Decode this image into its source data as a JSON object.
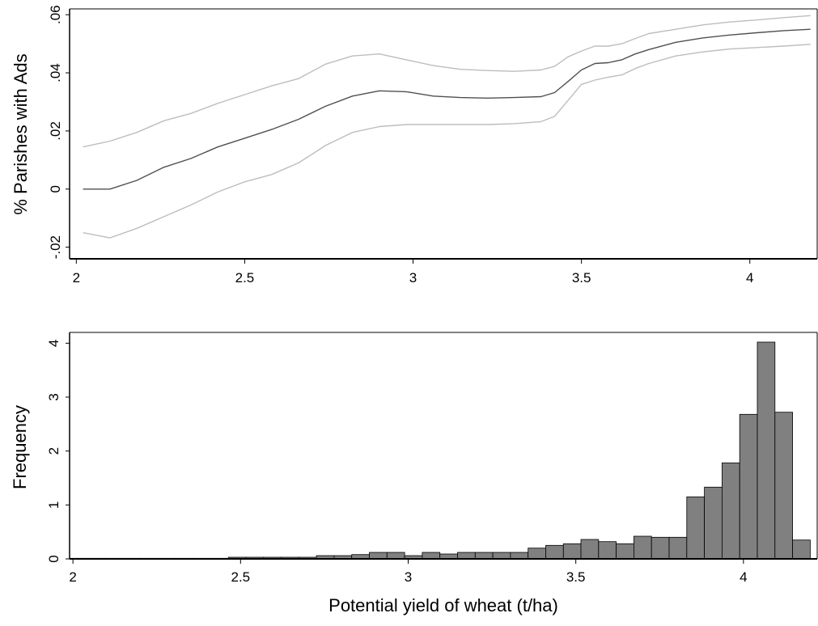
{
  "chart_data": [
    {
      "type": "line",
      "title": "",
      "xlabel": "",
      "ylabel": "% Parishes with Ads",
      "xlim": [
        1.98,
        4.2
      ],
      "ylim": [
        -0.024,
        0.062
      ],
      "xticks": [
        2,
        2.5,
        3,
        3.5,
        4
      ],
      "xtick_labels": [
        "2",
        "2.5",
        "3",
        "3.5",
        "4"
      ],
      "yticks": [
        -0.02,
        0,
        0.02,
        0.04,
        0.06
      ],
      "ytick_labels": [
        "-.02",
        "0",
        ".02",
        ".04",
        ".06"
      ],
      "grid": false,
      "series": [
        {
          "role": "estimate",
          "color": "#505050",
          "x": [
            2.02,
            2.1,
            2.18,
            2.26,
            2.34,
            2.42,
            2.5,
            2.58,
            2.66,
            2.74,
            2.82,
            2.9,
            2.98,
            3.06,
            3.14,
            3.22,
            3.3,
            3.38,
            3.42,
            3.46,
            3.5,
            3.54,
            3.58,
            3.62,
            3.66,
            3.7,
            3.78,
            3.86,
            3.94,
            4.02,
            4.1,
            4.18
          ],
          "y": [
            0.0,
            0.0,
            0.003,
            0.0075,
            0.0105,
            0.0145,
            0.0175,
            0.0205,
            0.024,
            0.0285,
            0.032,
            0.0338,
            0.0335,
            0.032,
            0.0315,
            0.0313,
            0.0315,
            0.0318,
            0.0332,
            0.037,
            0.041,
            0.0432,
            0.0435,
            0.0445,
            0.0465,
            0.048,
            0.0505,
            0.052,
            0.053,
            0.0538,
            0.0545,
            0.055
          ]
        },
        {
          "role": "upper-ci",
          "color": "#bdbdbd",
          "x": [
            2.02,
            2.1,
            2.18,
            2.26,
            2.34,
            2.42,
            2.5,
            2.58,
            2.66,
            2.74,
            2.82,
            2.9,
            2.98,
            3.06,
            3.14,
            3.22,
            3.3,
            3.38,
            3.42,
            3.46,
            3.5,
            3.54,
            3.58,
            3.62,
            3.66,
            3.7,
            3.78,
            3.86,
            3.94,
            4.02,
            4.1,
            4.18
          ],
          "y": [
            0.0145,
            0.0165,
            0.0195,
            0.0235,
            0.026,
            0.0295,
            0.0325,
            0.0355,
            0.038,
            0.043,
            0.0458,
            0.0465,
            0.0445,
            0.0425,
            0.0412,
            0.0408,
            0.0405,
            0.041,
            0.0422,
            0.0455,
            0.0475,
            0.0492,
            0.0492,
            0.05,
            0.0518,
            0.0535,
            0.055,
            0.0565,
            0.0575,
            0.0582,
            0.059,
            0.0597
          ]
        },
        {
          "role": "lower-ci",
          "color": "#bdbdbd",
          "x": [
            2.02,
            2.1,
            2.18,
            2.26,
            2.34,
            2.42,
            2.5,
            2.58,
            2.66,
            2.74,
            2.82,
            2.9,
            2.98,
            3.06,
            3.14,
            3.22,
            3.3,
            3.38,
            3.42,
            3.46,
            3.5,
            3.54,
            3.58,
            3.62,
            3.66,
            3.7,
            3.78,
            3.86,
            3.94,
            4.02,
            4.1,
            4.18
          ],
          "y": [
            -0.015,
            -0.0168,
            -0.0135,
            -0.0095,
            -0.0055,
            -0.001,
            0.0025,
            0.005,
            0.009,
            0.015,
            0.0195,
            0.0215,
            0.0222,
            0.0222,
            0.0222,
            0.0222,
            0.0225,
            0.0232,
            0.025,
            0.0305,
            0.036,
            0.0375,
            0.0385,
            0.0393,
            0.0415,
            0.0432,
            0.0458,
            0.0472,
            0.0482,
            0.0487,
            0.0492,
            0.0498
          ]
        }
      ]
    },
    {
      "type": "bar",
      "title": "",
      "xlabel": "Potential yield of wheat (t/ha)",
      "ylabel": "Frequency",
      "xlim": [
        1.99,
        4.22
      ],
      "ylim": [
        0,
        4.2
      ],
      "xticks": [
        2,
        2.5,
        3,
        3.5,
        4
      ],
      "xtick_labels": [
        "2",
        "2.5",
        "3",
        "3.5",
        "4"
      ],
      "yticks": [
        0,
        1,
        2,
        3,
        4
      ],
      "ytick_labels": [
        "0",
        "1",
        "2",
        "3",
        "4"
      ],
      "grid": false,
      "bar_color": "#808080",
      "bin_start": 1.99,
      "bin_width": 0.0526,
      "values": [
        0.01,
        0.01,
        0.01,
        0.01,
        0.01,
        0.01,
        0.01,
        0.01,
        0.01,
        0.03,
        0.03,
        0.03,
        0.03,
        0.03,
        0.06,
        0.06,
        0.08,
        0.12,
        0.12,
        0.06,
        0.12,
        0.09,
        0.12,
        0.12,
        0.12,
        0.12,
        0.2,
        0.25,
        0.28,
        0.36,
        0.32,
        0.28,
        0.42,
        0.4,
        0.4,
        1.15,
        1.33,
        1.78,
        2.68,
        4.02,
        2.72,
        0.35
      ]
    }
  ]
}
